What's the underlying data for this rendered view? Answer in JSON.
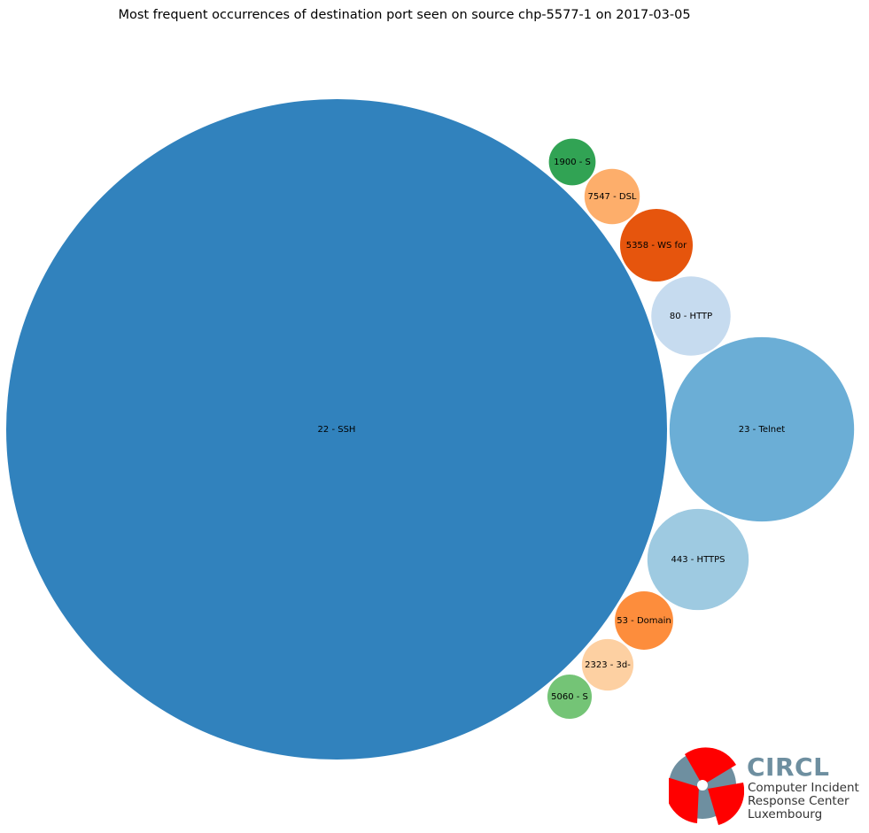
{
  "chart_data": {
    "type": "bubble",
    "title": "Most frequent occurrences of destination port seen on source chp-5577-1 on 2017-03-05",
    "bubbles": [
      {
        "label": "22 - SSH",
        "value": 1000,
        "color": "#3182bd"
      },
      {
        "label": "23 - Telnet",
        "value": 78,
        "color": "#6baed6"
      },
      {
        "label": "443 - HTTPS",
        "value": 23.5,
        "color": "#9ecae1"
      },
      {
        "label": "80 - HTTP",
        "value": 14.4,
        "color": "#c6dbef"
      },
      {
        "label": "5358 - WS for",
        "value": 12.1,
        "color": "#e6550d"
      },
      {
        "label": "53 - Domain",
        "value": 7.8,
        "color": "#fd8d3c"
      },
      {
        "label": "7547 - DSL",
        "value": 7.0,
        "color": "#fdae6b"
      },
      {
        "label": "2323 - 3d-",
        "value": 6.1,
        "color": "#fdd0a2"
      },
      {
        "label": "1900 - S",
        "value": 5.0,
        "color": "#31a354"
      },
      {
        "label": "5060 - S",
        "value": 4.5,
        "color": "#74c476"
      }
    ]
  },
  "logo": {
    "name": "CIRCL",
    "line1": "Computer Incident",
    "line2": "Response Center",
    "line3": "Luxembourg",
    "accent_color": "#ff0000",
    "gray_color": "#6e8fa0"
  }
}
